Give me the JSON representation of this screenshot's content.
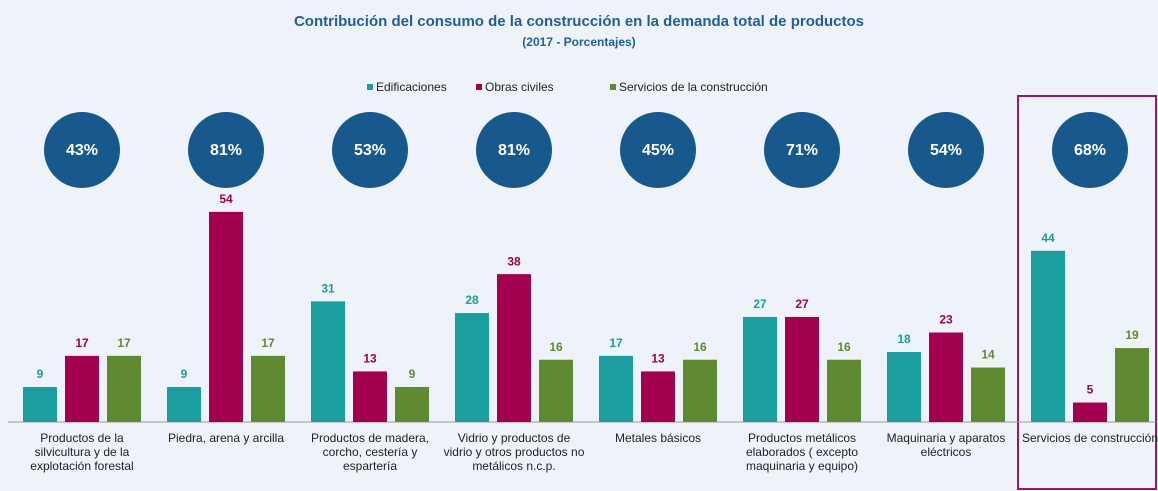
{
  "chart_data": {
    "type": "bar",
    "title": "Contribución del consumo de la construcción en la demanda total de productos",
    "subtitle": "(2017 - Porcentajes)",
    "categories": [
      "Productos de la silvicultura y de la explotación forestal",
      "Piedra, arena y arcilla",
      "Productos de madera, corcho, cestería y espartería",
      "Vidrio y productos de vidrio y otros productos no metálicos n.c.p.",
      "Metales básicos",
      "Productos metálicos elaborados ( excepto maquinaria y equipo)",
      "Maquinaria y aparatos eléctricos",
      "Servicios de construcción"
    ],
    "series": [
      {
        "name": "Edificaciones",
        "color": "#1a9e9e",
        "values": [
          9,
          9,
          31,
          28,
          17,
          27,
          18,
          44
        ]
      },
      {
        "name": "Obras civiles",
        "color": "#a3004f",
        "values": [
          17,
          54,
          13,
          38,
          13,
          27,
          23,
          5
        ]
      },
      {
        "name": "Servicios de la construcción",
        "color": "#5f8a32",
        "values": [
          17,
          17,
          9,
          16,
          16,
          16,
          14,
          19
        ]
      }
    ],
    "totals": {
      "color": "#17598c",
      "values": [
        43,
        81,
        53,
        81,
        45,
        71,
        54,
        68
      ],
      "value_labels": [
        "43%",
        "81%",
        "53%",
        "81%",
        "45%",
        "71%",
        "54%",
        "68%"
      ]
    },
    "ylim": [
      0,
      55
    ],
    "legend": "top"
  }
}
